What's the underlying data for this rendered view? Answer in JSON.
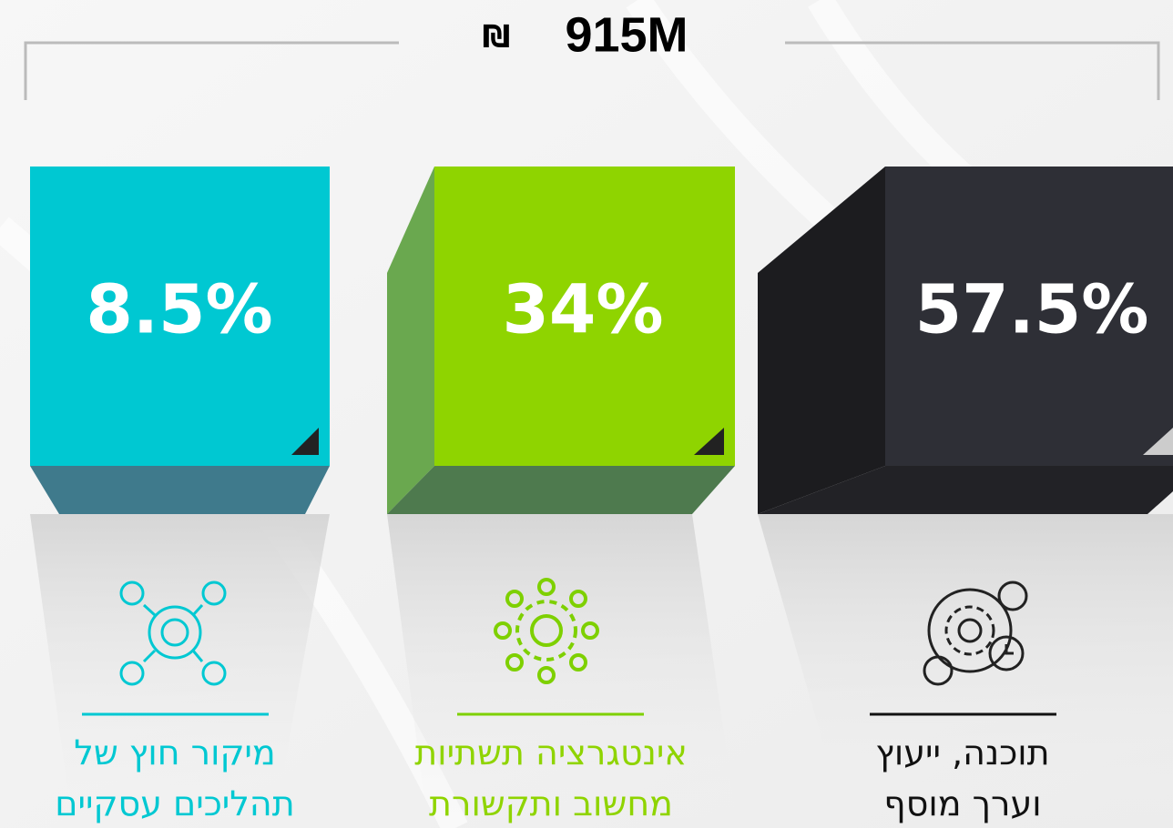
{
  "header": {
    "currency": "₪",
    "amount": "915M"
  },
  "items": [
    {
      "value_label": "8.5%",
      "label_lines": [
        "מיקור חוץ של",
        "תהליכים עסקיים"
      ],
      "color": "#00c8d2"
    },
    {
      "value_label": "34%",
      "label_lines": [
        "אינטגרציה תשתיות",
        "מחשוב ותקשורת"
      ],
      "color": "#8fd400"
    },
    {
      "value_label": "57.5%",
      "label_lines": [
        "תוכנה, ייעוץ",
        "וערך מוסף"
      ],
      "color": "#2e2f36"
    }
  ]
}
